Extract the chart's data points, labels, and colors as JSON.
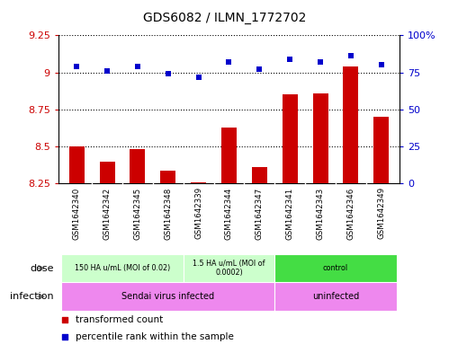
{
  "title": "GDS6082 / ILMN_1772702",
  "samples": [
    "GSM1642340",
    "GSM1642342",
    "GSM1642345",
    "GSM1642348",
    "GSM1642339",
    "GSM1642344",
    "GSM1642347",
    "GSM1642341",
    "GSM1642343",
    "GSM1642346",
    "GSM1642349"
  ],
  "transformed_count": [
    8.5,
    8.4,
    8.48,
    8.34,
    8.26,
    8.63,
    8.36,
    8.85,
    8.86,
    9.04,
    8.7
  ],
  "percentile_rank": [
    79,
    76,
    79,
    74,
    72,
    82,
    77,
    84,
    82,
    86,
    80
  ],
  "ylim_left": [
    8.25,
    9.25
  ],
  "ylim_right": [
    0,
    100
  ],
  "yticks_left": [
    8.25,
    8.5,
    8.75,
    9.0,
    9.25
  ],
  "yticks_right": [
    0,
    25,
    50,
    75,
    100
  ],
  "ytick_labels_left": [
    "8.25",
    "8.5",
    "8.75",
    "9",
    "9.25"
  ],
  "ytick_labels_right": [
    "0",
    "25",
    "50",
    "75",
    "100%"
  ],
  "bar_color": "#cc0000",
  "dot_color": "#0000cc",
  "dose_groups": [
    {
      "label": "150 HA u/mL (MOI of 0.02)",
      "start": 0,
      "end": 4,
      "color": "#ccffcc"
    },
    {
      "label": "1.5 HA u/mL (MOI of\n0.0002)",
      "start": 4,
      "end": 7,
      "color": "#ccffcc"
    },
    {
      "label": "control",
      "start": 7,
      "end": 11,
      "color": "#44dd44"
    }
  ],
  "infection_groups": [
    {
      "label": "Sendai virus infected",
      "start": 0,
      "end": 7,
      "color": "#ee88ee"
    },
    {
      "label": "uninfected",
      "start": 7,
      "end": 11,
      "color": "#ee88ee"
    }
  ],
  "dose_label": "dose",
  "infection_label": "infection",
  "legend_bar_label": "transformed count",
  "legend_dot_label": "percentile rank within the sample",
  "background_color": "#ffffff",
  "xtick_bg": "#d8d8d8",
  "arrow_color": "#888888"
}
